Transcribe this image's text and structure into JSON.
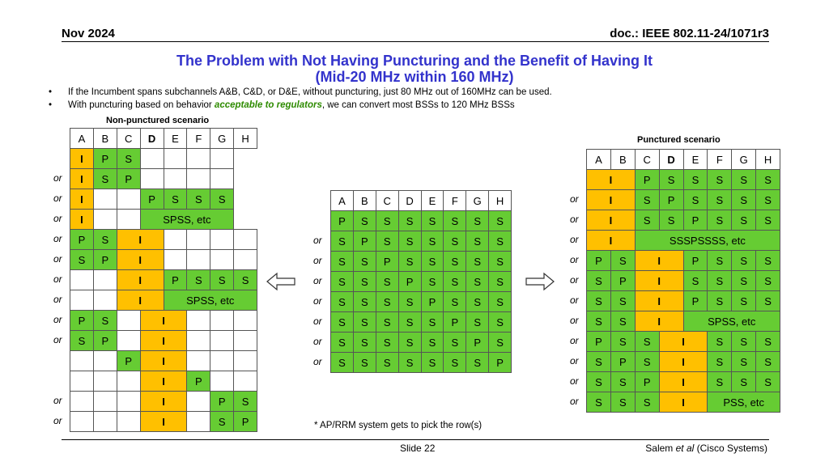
{
  "header": {
    "date": "Nov 2024",
    "doc": "doc.: IEEE 802.11-24/1071r3"
  },
  "title": {
    "line1": "The Problem with Not Having Puncturing and the Benefit of Having It",
    "line2": "(Mid-20 MHz within 160 MHz)"
  },
  "bullets": {
    "b1": "If the Incumbent spans subchannels A&B, C&D, or D&E, without puncturing, just 80 MHz out of 160MHz can be used.",
    "b2_pre": "With puncturing based on behavior ",
    "b2_em": "acceptable to regulators",
    "b2_post": ", we can convert most BSSs to 120 MHz BSSs",
    "bullet_char": "•"
  },
  "colors": {
    "green": "#66cc33",
    "orange": "#ffc000",
    "title": "#3333cc"
  },
  "tables": {
    "left": {
      "caption": "Non-punctured scenario",
      "header": [
        "A",
        "B",
        "C",
        "D",
        "E",
        "F",
        "G",
        "H"
      ],
      "header_bold": 3,
      "or_labels": [
        "",
        "or",
        "or",
        "or",
        "or",
        "or",
        "or",
        "or",
        "or",
        "or",
        "",
        "",
        "or",
        "or"
      ],
      "rows": [
        [
          [
            "I",
            "o",
            1
          ],
          [
            "P",
            "g",
            1
          ],
          [
            "S",
            "g",
            1
          ],
          [
            "",
            "w",
            1
          ],
          [
            "",
            "w",
            1
          ],
          [
            "",
            "w",
            1
          ],
          [
            "",
            "w",
            1
          ]
        ],
        [
          [
            "I",
            "o",
            1
          ],
          [
            "S",
            "g",
            1
          ],
          [
            "P",
            "g",
            1
          ],
          [
            "",
            "w",
            1
          ],
          [
            "",
            "w",
            1
          ],
          [
            "",
            "w",
            1
          ],
          [
            "",
            "w",
            1
          ]
        ],
        [
          [
            "I",
            "o",
            1
          ],
          [
            "",
            "w",
            1
          ],
          [
            "",
            "w",
            1
          ],
          [
            "P",
            "g",
            1
          ],
          [
            "S",
            "g",
            1
          ],
          [
            "S",
            "g",
            1
          ],
          [
            "S",
            "g",
            1
          ]
        ],
        [
          [
            "I",
            "o",
            1
          ],
          [
            "",
            "w",
            1
          ],
          [
            "",
            "w",
            1
          ],
          [
            "SPSS, etc",
            "g",
            4
          ]
        ],
        [
          [
            "P",
            "g",
            1
          ],
          [
            "S",
            "g",
            1
          ],
          [
            "I",
            "o",
            2
          ],
          [
            "",
            "w",
            1
          ],
          [
            "",
            "w",
            1
          ],
          [
            "",
            "w",
            1
          ],
          [
            "",
            "w",
            1
          ]
        ],
        [
          [
            "S",
            "g",
            1
          ],
          [
            "P",
            "g",
            1
          ],
          [
            "I",
            "o",
            2
          ],
          [
            "",
            "w",
            1
          ],
          [
            "",
            "w",
            1
          ],
          [
            "",
            "w",
            1
          ],
          [
            "",
            "w",
            1
          ]
        ],
        [
          [
            "",
            "w",
            1
          ],
          [
            "",
            "w",
            1
          ],
          [
            "I",
            "o",
            2
          ],
          [
            "P",
            "g",
            1
          ],
          [
            "S",
            "g",
            1
          ],
          [
            "S",
            "g",
            1
          ],
          [
            "S",
            "g",
            1
          ]
        ],
        [
          [
            "",
            "w",
            1
          ],
          [
            "",
            "w",
            1
          ],
          [
            "I",
            "o",
            2
          ],
          [
            "SPSS, etc",
            "g",
            4
          ]
        ],
        [
          [
            "P",
            "g",
            1
          ],
          [
            "S",
            "g",
            1
          ],
          [
            "",
            "w",
            1
          ],
          [
            "I",
            "o",
            2
          ],
          [
            "",
            "w",
            1
          ],
          [
            "",
            "w",
            1
          ],
          [
            "",
            "w",
            1
          ]
        ],
        [
          [
            "S",
            "g",
            1
          ],
          [
            "P",
            "g",
            1
          ],
          [
            "",
            "w",
            1
          ],
          [
            "I",
            "o",
            2
          ],
          [
            "",
            "w",
            1
          ],
          [
            "",
            "w",
            1
          ],
          [
            "",
            "w",
            1
          ]
        ],
        [
          [
            "",
            "w",
            1
          ],
          [
            "",
            "w",
            1
          ],
          [
            "P",
            "g",
            1
          ],
          [
            "I",
            "o",
            2
          ],
          [
            "",
            "w",
            1
          ],
          [
            "",
            "w",
            1
          ],
          [
            "",
            "w",
            1
          ]
        ],
        [
          [
            "",
            "w",
            1
          ],
          [
            "",
            "w",
            1
          ],
          [
            "",
            "w",
            1
          ],
          [
            "I",
            "o",
            2
          ],
          [
            "P",
            "g",
            1
          ],
          [
            "",
            "w",
            1
          ],
          [
            "",
            "w",
            1
          ]
        ],
        [
          [
            "",
            "w",
            1
          ],
          [
            "",
            "w",
            1
          ],
          [
            "",
            "w",
            1
          ],
          [
            "I",
            "o",
            2
          ],
          [
            "",
            "w",
            1
          ],
          [
            "P",
            "g",
            1
          ],
          [
            "S",
            "g",
            1
          ]
        ],
        [
          [
            "",
            "w",
            1
          ],
          [
            "",
            "w",
            1
          ],
          [
            "",
            "w",
            1
          ],
          [
            "I",
            "o",
            2
          ],
          [
            "",
            "w",
            1
          ],
          [
            "S",
            "g",
            1
          ],
          [
            "P",
            "g",
            1
          ]
        ]
      ]
    },
    "middle": {
      "header": [
        "A",
        "B",
        "C",
        "D",
        "E",
        "F",
        "G",
        "H"
      ],
      "or_labels": [
        "",
        "or",
        "or",
        "or",
        "or",
        "or",
        "or",
        "or"
      ],
      "rows": [
        [
          [
            "P",
            "g",
            1
          ],
          [
            "S",
            "g",
            1
          ],
          [
            "S",
            "g",
            1
          ],
          [
            "S",
            "g",
            1
          ],
          [
            "S",
            "g",
            1
          ],
          [
            "S",
            "g",
            1
          ],
          [
            "S",
            "g",
            1
          ],
          [
            "S",
            "g",
            1
          ]
        ],
        [
          [
            "S",
            "g",
            1
          ],
          [
            "P",
            "g",
            1
          ],
          [
            "S",
            "g",
            1
          ],
          [
            "S",
            "g",
            1
          ],
          [
            "S",
            "g",
            1
          ],
          [
            "S",
            "g",
            1
          ],
          [
            "S",
            "g",
            1
          ],
          [
            "S",
            "g",
            1
          ]
        ],
        [
          [
            "S",
            "g",
            1
          ],
          [
            "S",
            "g",
            1
          ],
          [
            "P",
            "g",
            1
          ],
          [
            "S",
            "g",
            1
          ],
          [
            "S",
            "g",
            1
          ],
          [
            "S",
            "g",
            1
          ],
          [
            "S",
            "g",
            1
          ],
          [
            "S",
            "g",
            1
          ]
        ],
        [
          [
            "S",
            "g",
            1
          ],
          [
            "S",
            "g",
            1
          ],
          [
            "S",
            "g",
            1
          ],
          [
            "P",
            "g",
            1
          ],
          [
            "S",
            "g",
            1
          ],
          [
            "S",
            "g",
            1
          ],
          [
            "S",
            "g",
            1
          ],
          [
            "S",
            "g",
            1
          ]
        ],
        [
          [
            "S",
            "g",
            1
          ],
          [
            "S",
            "g",
            1
          ],
          [
            "S",
            "g",
            1
          ],
          [
            "S",
            "g",
            1
          ],
          [
            "P",
            "g",
            1
          ],
          [
            "S",
            "g",
            1
          ],
          [
            "S",
            "g",
            1
          ],
          [
            "S",
            "g",
            1
          ]
        ],
        [
          [
            "S",
            "g",
            1
          ],
          [
            "S",
            "g",
            1
          ],
          [
            "S",
            "g",
            1
          ],
          [
            "S",
            "g",
            1
          ],
          [
            "S",
            "g",
            1
          ],
          [
            "P",
            "g",
            1
          ],
          [
            "S",
            "g",
            1
          ],
          [
            "S",
            "g",
            1
          ]
        ],
        [
          [
            "S",
            "g",
            1
          ],
          [
            "S",
            "g",
            1
          ],
          [
            "S",
            "g",
            1
          ],
          [
            "S",
            "g",
            1
          ],
          [
            "S",
            "g",
            1
          ],
          [
            "S",
            "g",
            1
          ],
          [
            "P",
            "g",
            1
          ],
          [
            "S",
            "g",
            1
          ]
        ],
        [
          [
            "S",
            "g",
            1
          ],
          [
            "S",
            "g",
            1
          ],
          [
            "S",
            "g",
            1
          ],
          [
            "S",
            "g",
            1
          ],
          [
            "S",
            "g",
            1
          ],
          [
            "S",
            "g",
            1
          ],
          [
            "S",
            "g",
            1
          ],
          [
            "P",
            "g",
            1
          ]
        ]
      ]
    },
    "right": {
      "caption": "Punctured scenario",
      "header": [
        "A",
        "B",
        "C",
        "D",
        "E",
        "F",
        "G",
        "H"
      ],
      "header_bold": 3,
      "or_labels": [
        "",
        "or",
        "or",
        "or",
        "or",
        "or",
        "or",
        "or",
        "or",
        "or",
        "or",
        "or"
      ],
      "rows": [
        [
          [
            "I",
            "o",
            2
          ],
          [
            "P",
            "g",
            1
          ],
          [
            "S",
            "g",
            1
          ],
          [
            "S",
            "g",
            1
          ],
          [
            "S",
            "g",
            1
          ],
          [
            "S",
            "g",
            1
          ],
          [
            "S",
            "g",
            1
          ]
        ],
        [
          [
            "I",
            "o",
            2
          ],
          [
            "S",
            "g",
            1
          ],
          [
            "P",
            "g",
            1
          ],
          [
            "S",
            "g",
            1
          ],
          [
            "S",
            "g",
            1
          ],
          [
            "S",
            "g",
            1
          ],
          [
            "S",
            "g",
            1
          ]
        ],
        [
          [
            "I",
            "o",
            2
          ],
          [
            "S",
            "g",
            1
          ],
          [
            "S",
            "g",
            1
          ],
          [
            "P",
            "g",
            1
          ],
          [
            "S",
            "g",
            1
          ],
          [
            "S",
            "g",
            1
          ],
          [
            "S",
            "g",
            1
          ]
        ],
        [
          [
            "I",
            "o",
            2
          ],
          [
            "SSSPSSSS, etc",
            "g",
            6
          ]
        ],
        [
          [
            "P",
            "g",
            1
          ],
          [
            "S",
            "g",
            1
          ],
          [
            "I",
            "o",
            2
          ],
          [
            "P",
            "g",
            1
          ],
          [
            "S",
            "g",
            1
          ],
          [
            "S",
            "g",
            1
          ],
          [
            "S",
            "g",
            1
          ]
        ],
        [
          [
            "S",
            "g",
            1
          ],
          [
            "P",
            "g",
            1
          ],
          [
            "I",
            "o",
            2
          ],
          [
            "S",
            "g",
            1
          ],
          [
            "S",
            "g",
            1
          ],
          [
            "S",
            "g",
            1
          ],
          [
            "S",
            "g",
            1
          ]
        ],
        [
          [
            "S",
            "g",
            1
          ],
          [
            "S",
            "g",
            1
          ],
          [
            "I",
            "o",
            2
          ],
          [
            "P",
            "g",
            1
          ],
          [
            "S",
            "g",
            1
          ],
          [
            "S",
            "g",
            1
          ],
          [
            "S",
            "g",
            1
          ]
        ],
        [
          [
            "S",
            "g",
            1
          ],
          [
            "S",
            "g",
            1
          ],
          [
            "I",
            "o",
            2
          ],
          [
            "SPSS, etc",
            "g",
            4
          ]
        ],
        [
          [
            "P",
            "g",
            1
          ],
          [
            "S",
            "g",
            1
          ],
          [
            "S",
            "g",
            1
          ],
          [
            "I",
            "o",
            2
          ],
          [
            "S",
            "g",
            1
          ],
          [
            "S",
            "g",
            1
          ],
          [
            "S",
            "g",
            1
          ]
        ],
        [
          [
            "S",
            "g",
            1
          ],
          [
            "P",
            "g",
            1
          ],
          [
            "S",
            "g",
            1
          ],
          [
            "I",
            "o",
            2
          ],
          [
            "S",
            "g",
            1
          ],
          [
            "S",
            "g",
            1
          ],
          [
            "S",
            "g",
            1
          ]
        ],
        [
          [
            "S",
            "g",
            1
          ],
          [
            "S",
            "g",
            1
          ],
          [
            "P",
            "g",
            1
          ],
          [
            "I",
            "o",
            2
          ],
          [
            "S",
            "g",
            1
          ],
          [
            "S",
            "g",
            1
          ],
          [
            "S",
            "g",
            1
          ]
        ],
        [
          [
            "S",
            "g",
            1
          ],
          [
            "S",
            "g",
            1
          ],
          [
            "S",
            "g",
            1
          ],
          [
            "I",
            "o",
            2
          ],
          [
            "PSS, etc",
            "g",
            3
          ]
        ]
      ]
    }
  },
  "note": "* AP/RRM system gets to pick the row(s)",
  "footer": {
    "slide": "Slide 22",
    "author_pre": "Salem ",
    "author_em": "et al",
    "author_post": " (Cisco Systems)"
  }
}
